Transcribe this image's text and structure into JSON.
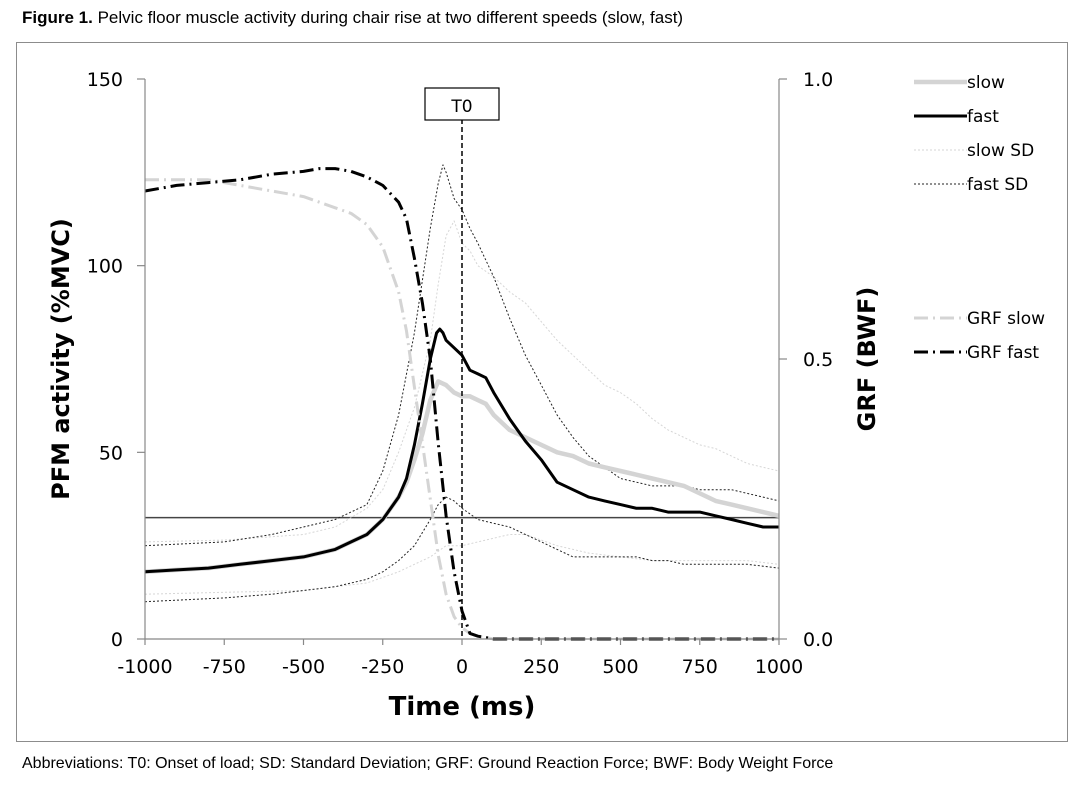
{
  "caption": {
    "label": "Figure 1.",
    "text": "Pelvic floor muscle activity during chair rise at two different speeds (slow, fast)"
  },
  "footnote": "Abbreviations: T0: Onset of load; SD: Standard Deviation; GRF: Ground Reaction Force; BWF: Body Weight Force",
  "chart_data": {
    "type": "line",
    "xlabel": "Time (ms)",
    "ylabel": "PFM activity (%MVC)",
    "y2label": "GRF (BWF)",
    "xlim": [
      -1000,
      1000
    ],
    "ylim": [
      0,
      150
    ],
    "y2lim": [
      0,
      1.0
    ],
    "xticks": [
      "-1000",
      "-750",
      "-500",
      "-250",
      "0",
      "250",
      "500",
      "750",
      "1000"
    ],
    "yticks": [
      "0",
      "50",
      "100",
      "150"
    ],
    "y2ticks": [
      "0.0",
      "0.5",
      "1.0"
    ],
    "annotation": {
      "label": "T0",
      "x": 0
    },
    "reference_line_y": 32.5,
    "grid": false,
    "legend": {
      "placement": "right",
      "entries": [
        "slow",
        "fast",
        "slow SD",
        "fast SD",
        "GRF slow",
        "GRF fast"
      ]
    },
    "series": [
      {
        "name": "slow SD",
        "axis": "left",
        "color": "#d6d6d6",
        "dash": "2,2",
        "width": 1,
        "x": [
          -1000,
          -750,
          -500,
          -400,
          -300,
          -250,
          -200,
          -150,
          -100,
          -75,
          -50,
          -25,
          0,
          25,
          50,
          100,
          150,
          200,
          250,
          300,
          350,
          400,
          450,
          500,
          550,
          600,
          650,
          700,
          750,
          800,
          850,
          900,
          950,
          1000
        ],
        "y": [
          26,
          26.5,
          28,
          30,
          35,
          40,
          50,
          62,
          80,
          95,
          108,
          112,
          106,
          104,
          100,
          97,
          93,
          90,
          85,
          80,
          76,
          72,
          68,
          66,
          63,
          59,
          56,
          54,
          52,
          51,
          49,
          47,
          46,
          45
        ]
      },
      {
        "name": "slow SD",
        "axis": "left",
        "color": "#d6d6d6",
        "dash": "2,2",
        "width": 1,
        "x": [
          -1000,
          -750,
          -500,
          -400,
          -300,
          -250,
          -200,
          -150,
          -100,
          -75,
          -50,
          -25,
          0,
          50,
          100,
          150,
          200,
          250,
          300,
          350,
          400,
          450,
          500,
          550,
          600,
          650,
          700,
          750,
          800,
          850,
          900,
          950,
          1000
        ],
        "y": [
          12,
          12.5,
          13,
          14,
          15,
          16.5,
          18,
          20,
          22,
          23.5,
          25,
          25,
          25,
          26,
          27,
          28,
          28,
          26.5,
          25,
          24,
          23,
          22.5,
          22,
          21.5,
          21,
          21,
          21,
          21,
          21,
          21,
          21,
          20.5,
          20
        ]
      },
      {
        "name": "fast SD",
        "axis": "left",
        "color": "#222222",
        "dash": "2,2",
        "width": 1,
        "x": [
          -1000,
          -750,
          -600,
          -500,
          -400,
          -300,
          -250,
          -200,
          -150,
          -100,
          -75,
          -60,
          -50,
          -25,
          0,
          25,
          50,
          100,
          150,
          200,
          250,
          300,
          350,
          400,
          450,
          500,
          550,
          600,
          650,
          700,
          750,
          800,
          850,
          900,
          950,
          1000
        ],
        "y": [
          25,
          26,
          28,
          30,
          32,
          36,
          45,
          60,
          82,
          110,
          122,
          127,
          125,
          118,
          115,
          110,
          106,
          97,
          86,
          76,
          68,
          60,
          54,
          49,
          46,
          43,
          42,
          41,
          41,
          41,
          40,
          40,
          40,
          39,
          38,
          37
        ]
      },
      {
        "name": "fast SD",
        "axis": "left",
        "color": "#222222",
        "dash": "2,2",
        "width": 1,
        "x": [
          -1000,
          -750,
          -600,
          -500,
          -400,
          -300,
          -250,
          -200,
          -150,
          -100,
          -75,
          -50,
          -25,
          0,
          50,
          100,
          150,
          200,
          250,
          300,
          350,
          400,
          450,
          500,
          550,
          600,
          650,
          700,
          750,
          800,
          850,
          900,
          950,
          1000
        ],
        "y": [
          10,
          11,
          12,
          13,
          14,
          16,
          18,
          21,
          25,
          32,
          36,
          38,
          37,
          35,
          32,
          31,
          30,
          28,
          26,
          24,
          22,
          22,
          22,
          22,
          22,
          21,
          21,
          20,
          20,
          20,
          20,
          20,
          19.5,
          19
        ]
      },
      {
        "name": "slow",
        "axis": "left",
        "color": "#d4d4d4",
        "dash": "",
        "width": 4.5,
        "x": [
          -1000,
          -900,
          -800,
          -700,
          -600,
          -500,
          -400,
          -350,
          -300,
          -250,
          -200,
          -175,
          -150,
          -125,
          -100,
          -75,
          -50,
          -25,
          0,
          25,
          50,
          75,
          100,
          150,
          200,
          250,
          300,
          350,
          400,
          450,
          500,
          550,
          600,
          650,
          700,
          750,
          800,
          850,
          900,
          950,
          1000
        ],
        "y": [
          18,
          18.5,
          19,
          20,
          21,
          22,
          24,
          26,
          28,
          32,
          38,
          42,
          48,
          55,
          64,
          69,
          68,
          66,
          65,
          65,
          64,
          63,
          60,
          56,
          54,
          52,
          50,
          49,
          47,
          46,
          45,
          44,
          43,
          42,
          41,
          39,
          37,
          36,
          35,
          34,
          33
        ]
      },
      {
        "name": "fast",
        "axis": "left",
        "color": "#000000",
        "dash": "",
        "width": 3,
        "x": [
          -1000,
          -900,
          -800,
          -700,
          -600,
          -500,
          -400,
          -350,
          -300,
          -250,
          -200,
          -175,
          -150,
          -125,
          -100,
          -80,
          -70,
          -60,
          -50,
          -25,
          0,
          25,
          50,
          75,
          100,
          150,
          200,
          250,
          300,
          350,
          400,
          450,
          500,
          550,
          600,
          650,
          700,
          750,
          800,
          850,
          900,
          950,
          1000
        ],
        "y": [
          18,
          18.5,
          19,
          20,
          21,
          22,
          24,
          26,
          28,
          32,
          38,
          43,
          52,
          63,
          75,
          82,
          83,
          82,
          80,
          78,
          76,
          72,
          71,
          70,
          66,
          59,
          53,
          48,
          42,
          40,
          38,
          37,
          36,
          35,
          35,
          34,
          34,
          34,
          33,
          32,
          31,
          30,
          30
        ]
      },
      {
        "name": "GRF slow",
        "axis": "right",
        "color": "#d4d4d4",
        "dash": "14,5,2,5",
        "width": 3,
        "x": [
          -1000,
          -900,
          -800,
          -700,
          -600,
          -500,
          -450,
          -400,
          -350,
          -300,
          -250,
          -200,
          -175,
          -150,
          -125,
          -100,
          -75,
          -50,
          -25,
          0,
          25,
          50,
          100,
          200,
          300,
          400,
          500,
          600,
          700,
          800,
          900,
          1000
        ],
        "y": [
          0.82,
          0.82,
          0.82,
          0.81,
          0.8,
          0.79,
          0.78,
          0.77,
          0.76,
          0.74,
          0.7,
          0.62,
          0.55,
          0.45,
          0.35,
          0.25,
          0.15,
          0.08,
          0.04,
          0.02,
          0.01,
          0.005,
          0,
          0,
          0,
          0,
          0,
          0,
          0,
          0,
          0,
          0
        ]
      },
      {
        "name": "GRF fast",
        "axis": "right",
        "color": "#000000",
        "dash": "14,5,2,5",
        "width": 3,
        "x": [
          -1000,
          -900,
          -800,
          -700,
          -600,
          -500,
          -450,
          -400,
          -350,
          -300,
          -250,
          -200,
          -175,
          -150,
          -125,
          -100,
          -75,
          -50,
          -25,
          0,
          25,
          50,
          100,
          200,
          300,
          400,
          500,
          600,
          700,
          800,
          900,
          1000
        ],
        "y": [
          0.8,
          0.81,
          0.815,
          0.82,
          0.83,
          0.835,
          0.84,
          0.84,
          0.835,
          0.825,
          0.81,
          0.78,
          0.75,
          0.68,
          0.6,
          0.5,
          0.35,
          0.22,
          0.12,
          0.05,
          0.01,
          0.005,
          0,
          0,
          0,
          0,
          0,
          0,
          0,
          0,
          0,
          0
        ]
      }
    ]
  }
}
